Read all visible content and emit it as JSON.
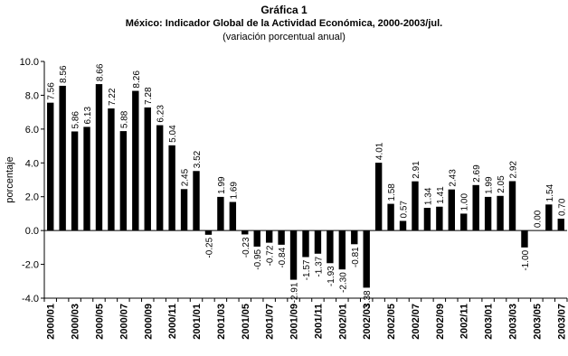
{
  "chart_data": {
    "type": "bar",
    "title": "Gráfica 1",
    "subtitle": "México: Indicador Global de la Actividad Económica, 2000-2003/jul.",
    "subtitle2": "(variación porcentual anual)",
    "ylabel": "porcentaje",
    "xlabel": "",
    "ylim": [
      -4.0,
      10.0
    ],
    "yticks": [
      "-4.0",
      "-2.0",
      "0.0",
      "2.0",
      "4.0",
      "6.0",
      "8.0",
      "10.0"
    ],
    "grid": false,
    "legend": "none",
    "bar_color": "#000000",
    "categories": [
      "2000/01",
      "2000/02",
      "2000/03",
      "2000/04",
      "2000/05",
      "2000/06",
      "2000/07",
      "2000/08",
      "2000/09",
      "2000/10",
      "2000/11",
      "2000/12",
      "2001/01",
      "2001/02",
      "2001/03",
      "2001/04",
      "2001/05",
      "2001/06",
      "2001/07",
      "2001/08",
      "2001/09",
      "2001/10",
      "2001/11",
      "2001/12",
      "2002/01",
      "2002/02",
      "2002/03",
      "2002/04",
      "2002/05",
      "2002/06",
      "2002/07",
      "2002/08",
      "2002/09",
      "2002/10",
      "2002/11",
      "2002/12",
      "2003/01",
      "2003/02",
      "2003/03",
      "2003/04",
      "2003/05",
      "2003/06",
      "2003/07"
    ],
    "tick_labels": [
      "2000/01",
      "",
      "2000/03",
      "",
      "2000/05",
      "",
      "2000/07",
      "",
      "2000/09",
      "",
      "2000/11",
      "",
      "2001/01",
      "",
      "2001/03",
      "",
      "2001/05",
      "",
      "2001/07",
      "",
      "2001/09",
      "",
      "2001/11",
      "",
      "2002/01",
      "",
      "2002/03",
      "",
      "2002/05",
      "",
      "2002/07",
      "",
      "2002/09",
      "",
      "2002/11",
      "",
      "2003/01",
      "",
      "2003/03",
      "",
      "2003/05",
      "",
      "2003/07"
    ],
    "values": [
      7.56,
      8.56,
      5.86,
      6.13,
      8.66,
      7.22,
      5.88,
      8.26,
      7.28,
      6.23,
      5.04,
      2.45,
      3.52,
      -0.25,
      1.99,
      1.69,
      -0.23,
      -0.95,
      -0.72,
      -0.84,
      -2.91,
      -1.57,
      -1.37,
      -1.93,
      -2.3,
      -0.81,
      -3.38,
      4.01,
      1.58,
      0.57,
      2.91,
      1.34,
      1.41,
      2.43,
      1.0,
      2.69,
      1.99,
      2.05,
      2.92,
      -1.0,
      0.0,
      1.54,
      0.7
    ],
    "data_labels": [
      "7.56",
      "8.56",
      "5.86",
      "6.13",
      "8.66",
      "7.22",
      "5.88",
      "8.26",
      "7.28",
      "6.23",
      "5.04",
      "2.45",
      "3.52",
      "-0.25",
      "1.99",
      "1.69",
      "-0.23",
      "-0.95",
      "-0.72",
      "-0.84",
      "-2.91",
      "-1.57",
      "-1.37",
      "-1.93",
      "-2.30",
      "-0.81",
      "-3.38",
      "4.01",
      "1.58",
      "0.57",
      "2.91",
      "1.34",
      "1.41",
      "2.43",
      "1.00",
      "2.69",
      "1.99",
      "2.05",
      "2.92",
      "-1.00",
      "0.00",
      "1.54",
      "0.70"
    ]
  }
}
